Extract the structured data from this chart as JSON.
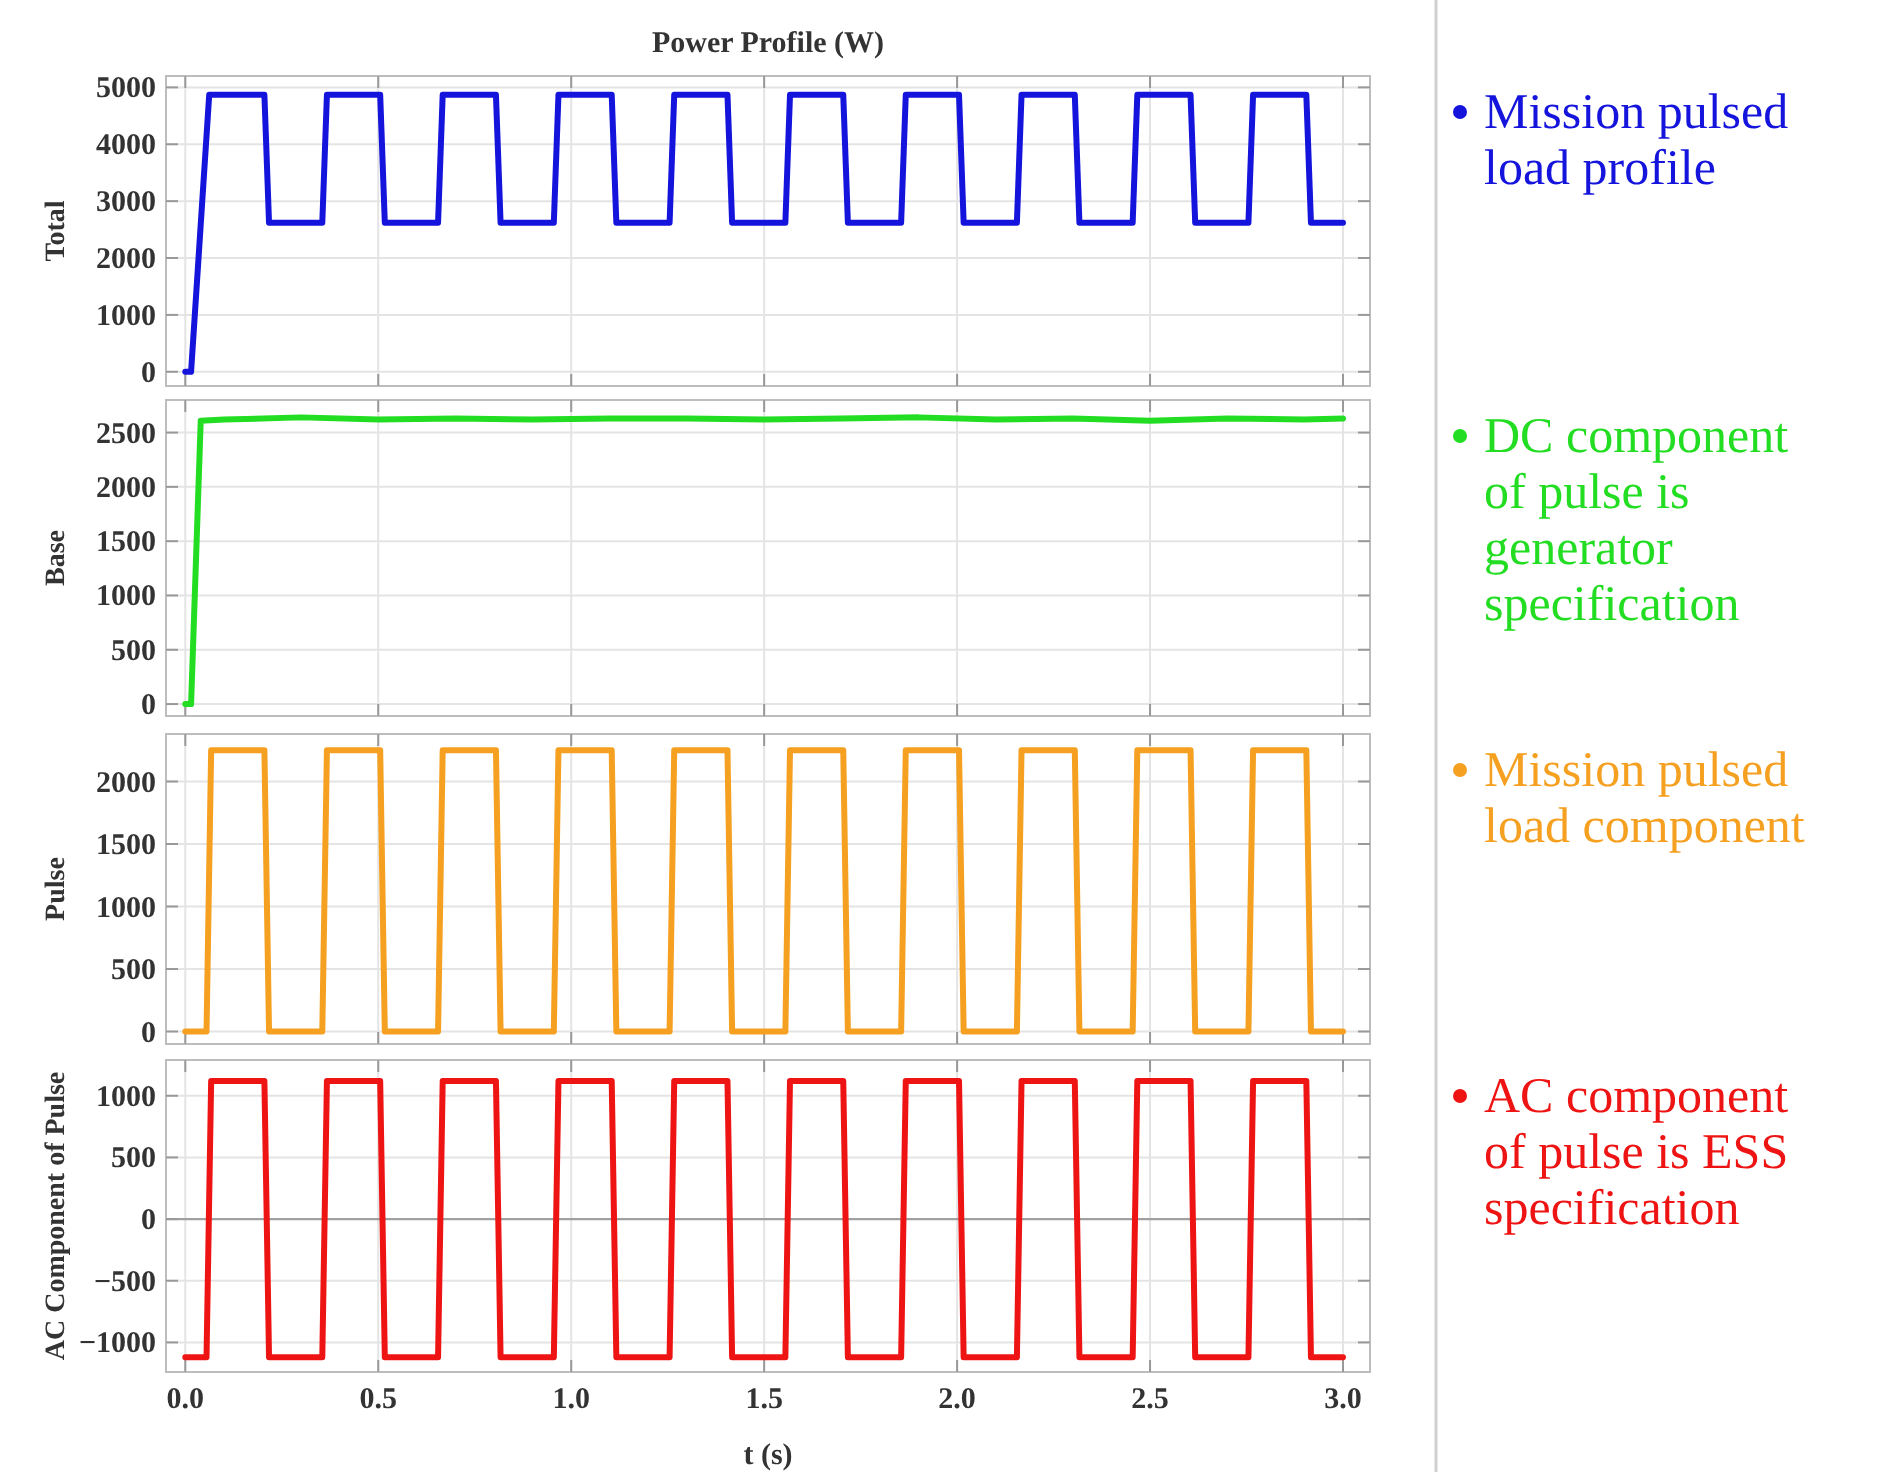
{
  "chart_data": [
    {
      "type": "line",
      "title": "Power Profile (W)",
      "ylabel": "Total",
      "xlim": [
        -0.05,
        3.07
      ],
      "ylim": [
        -250,
        5200
      ],
      "xticks": [
        {
          "value": 0,
          "label": null
        },
        {
          "value": 0.5,
          "label": null
        },
        {
          "value": 1,
          "label": null
        },
        {
          "value": 1.5,
          "label": null
        },
        {
          "value": 2,
          "label": null
        },
        {
          "value": 2.5,
          "label": null
        },
        {
          "value": 3,
          "label": null
        }
      ],
      "yticks": [
        0,
        1000,
        2000,
        3000,
        4000,
        5000
      ],
      "tick_labels": "y",
      "grid": true,
      "legend": "right",
      "series": [
        {
          "name": "Mission pulsed load profile",
          "color": "#1414dc",
          "x": [
            0,
            0.015,
            0.062,
            0.205,
            0.217,
            0.355,
            0.367,
            0.505,
            0.517,
            0.655,
            0.667,
            0.805,
            0.817,
            0.955,
            0.967,
            1.105,
            1.117,
            1.255,
            1.267,
            1.405,
            1.417,
            1.555,
            1.567,
            1.705,
            1.717,
            1.855,
            1.867,
            2.005,
            2.017,
            2.155,
            2.167,
            2.305,
            2.317,
            2.455,
            2.467,
            2.605,
            2.617,
            2.755,
            2.767,
            2.905,
            2.917,
            3.0
          ],
          "values": [
            0,
            0,
            4870,
            4870,
            2620,
            2620,
            4870,
            4870,
            2620,
            2620,
            4870,
            4870,
            2620,
            2620,
            4870,
            4870,
            2620,
            2620,
            4870,
            4870,
            2620,
            2620,
            4870,
            4870,
            2620,
            2620,
            4870,
            4870,
            2620,
            2620,
            4870,
            4870,
            2620,
            2620,
            4870,
            4870,
            2620,
            2620,
            4870,
            4870,
            2620,
            2620
          ]
        }
      ]
    },
    {
      "type": "line",
      "ylabel": "Base",
      "xlim": [
        -0.05,
        3.07
      ],
      "ylim": [
        -110,
        2800
      ],
      "xticks": [
        {
          "value": 0,
          "label": null
        },
        {
          "value": 0.5,
          "label": null
        },
        {
          "value": 1,
          "label": null
        },
        {
          "value": 1.5,
          "label": null
        },
        {
          "value": 2,
          "label": null
        },
        {
          "value": 2.5,
          "label": null
        },
        {
          "value": 3,
          "label": null
        }
      ],
      "yticks": [
        0,
        500,
        1000,
        1500,
        2000,
        2500
      ],
      "tick_labels": "y",
      "grid": true,
      "legend": "right",
      "series": [
        {
          "name": "DC component of pulse is generator specification",
          "color": "#22dd22",
          "x": [
            0,
            0.015,
            0.04,
            0.1,
            0.3,
            0.5,
            0.7,
            0.9,
            1.1,
            1.3,
            1.5,
            1.7,
            1.9,
            2.1,
            2.3,
            2.5,
            2.7,
            2.9,
            3.0
          ],
          "values": [
            0,
            0,
            2610,
            2620,
            2640,
            2620,
            2630,
            2620,
            2630,
            2630,
            2620,
            2630,
            2640,
            2620,
            2630,
            2610,
            2630,
            2620,
            2630
          ]
        }
      ]
    },
    {
      "type": "line",
      "ylabel": "Pulse",
      "xlim": [
        -0.05,
        3.07
      ],
      "ylim": [
        -100,
        2380
      ],
      "xticks": [
        {
          "value": 0,
          "label": null
        },
        {
          "value": 0.5,
          "label": null
        },
        {
          "value": 1,
          "label": null
        },
        {
          "value": 1.5,
          "label": null
        },
        {
          "value": 2,
          "label": null
        },
        {
          "value": 2.5,
          "label": null
        },
        {
          "value": 3,
          "label": null
        }
      ],
      "yticks": [
        0,
        500,
        1000,
        1500,
        2000
      ],
      "tick_labels": "y",
      "grid": true,
      "legend": "right",
      "series": [
        {
          "name": "Mission pulsed load component",
          "color": "#f5a020",
          "x": [
            0,
            0.055,
            0.067,
            0.205,
            0.217,
            0.355,
            0.367,
            0.505,
            0.517,
            0.655,
            0.667,
            0.805,
            0.817,
            0.955,
            0.967,
            1.105,
            1.117,
            1.255,
            1.267,
            1.405,
            1.417,
            1.555,
            1.567,
            1.705,
            1.717,
            1.855,
            1.867,
            2.005,
            2.017,
            2.155,
            2.167,
            2.305,
            2.317,
            2.455,
            2.467,
            2.605,
            2.617,
            2.755,
            2.767,
            2.905,
            2.917,
            3.0
          ],
          "values": [
            0,
            0,
            2250,
            2250,
            0,
            0,
            2250,
            2250,
            0,
            0,
            2250,
            2250,
            0,
            0,
            2250,
            2250,
            0,
            0,
            2250,
            2250,
            0,
            0,
            2250,
            2250,
            0,
            0,
            2250,
            2250,
            0,
            0,
            2250,
            2250,
            0,
            0,
            2250,
            2250,
            0,
            0,
            2250,
            2250,
            0,
            0
          ]
        }
      ]
    },
    {
      "type": "line",
      "xlabel": "t (s)",
      "ylabel": "AC Component of Pulse",
      "xlim": [
        -0.05,
        3.07
      ],
      "ylim": [
        -1240,
        1290
      ],
      "xticks": [
        {
          "value": 0,
          "label": "0.0"
        },
        {
          "value": 0.5,
          "label": "0.5"
        },
        {
          "value": 1,
          "label": "1.0"
        },
        {
          "value": 1.5,
          "label": "1.5"
        },
        {
          "value": 2,
          "label": "2.0"
        },
        {
          "value": 2.5,
          "label": "2.5"
        },
        {
          "value": 3,
          "label": "3.0"
        }
      ],
      "yticks": [
        {
          "value": -1000,
          "label": "−1000"
        },
        {
          "value": -500,
          "label": "−500"
        },
        0,
        500,
        1000
      ],
      "grid": true,
      "legend": "right",
      "ref_lines": [
        {
          "axis": "y",
          "value": 0,
          "color": "#a0a0a0"
        }
      ],
      "series": [
        {
          "name": "AC component of pulse is ESS specification",
          "color": "#ee1414",
          "x": [
            0,
            0.055,
            0.067,
            0.205,
            0.217,
            0.355,
            0.367,
            0.505,
            0.517,
            0.655,
            0.667,
            0.805,
            0.817,
            0.955,
            0.967,
            1.105,
            1.117,
            1.255,
            1.267,
            1.405,
            1.417,
            1.555,
            1.567,
            1.705,
            1.717,
            1.855,
            1.867,
            2.005,
            2.017,
            2.155,
            2.167,
            2.305,
            2.317,
            2.455,
            2.467,
            2.605,
            2.617,
            2.755,
            2.767,
            2.905,
            2.917,
            3.0
          ],
          "values": [
            -1120,
            -1120,
            1120,
            1120,
            -1120,
            -1120,
            1120,
            1120,
            -1120,
            -1120,
            1120,
            1120,
            -1120,
            -1120,
            1120,
            1120,
            -1120,
            -1120,
            1120,
            1120,
            -1120,
            -1120,
            1120,
            1120,
            -1120,
            -1120,
            1120,
            1120,
            -1120,
            -1120,
            1120,
            1120,
            -1120,
            -1120,
            1120,
            1120,
            -1120,
            -1120,
            1120,
            1120,
            -1120,
            -1120
          ]
        }
      ]
    }
  ]
}
